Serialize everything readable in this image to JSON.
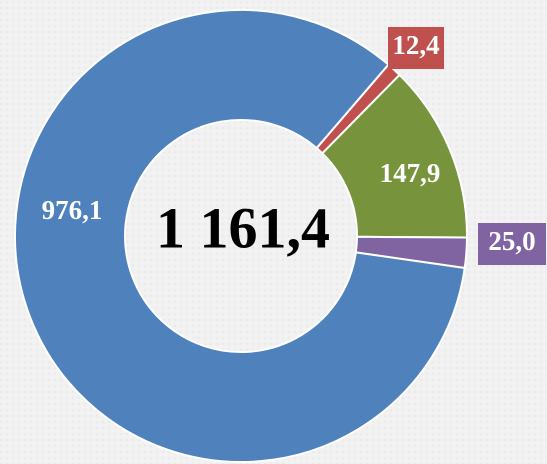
{
  "chart_data": {
    "type": "donut",
    "values": [
      12.4,
      147.9,
      25.0,
      976.1
    ],
    "value_labels": [
      "12,4",
      "147,9",
      "25,0",
      "976,1"
    ],
    "colors": [
      "#c0504d",
      "#77933c",
      "#8064a2",
      "#4f81bd"
    ],
    "center_label": "1 161,4"
  }
}
